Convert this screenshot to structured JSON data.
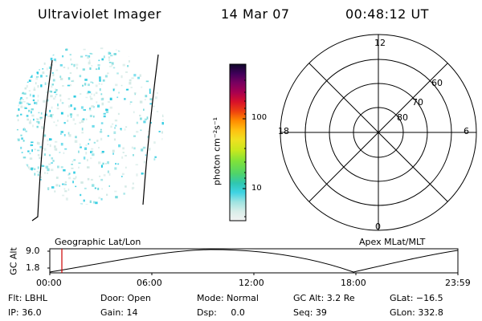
{
  "header": {
    "instrument": "Ultraviolet Imager",
    "date": "14 Mar 07",
    "time": "00:48:12 UT"
  },
  "colorbar": {
    "unit_label": "photon cm⁻²s⁻¹",
    "ticks": [
      "100",
      "10"
    ]
  },
  "polar": {
    "clock_labels": [
      "12",
      "18",
      "6",
      "0"
    ],
    "lat_labels": [
      "60",
      "70",
      "80"
    ]
  },
  "altitude_plot": {
    "left_label": "Geographic Lat/Lon",
    "right_label": "Apex MLat/MLT",
    "ylabel": "GC Alt",
    "yticks": [
      "9.0",
      "1.8"
    ],
    "xticks": [
      "00:00",
      "06:00",
      "12:00",
      "18:00",
      "23:59"
    ]
  },
  "status": {
    "row1": [
      "Flt: LBHL",
      "Door: Open",
      "Mode: Normal",
      "GC Alt: 3.2 Re",
      "GLat: −16.5"
    ],
    "row2": [
      "IP: 36.0",
      "Gain: 14",
      "Dsp:     0.0",
      "Seq: 39",
      "GLon: 332.8"
    ]
  },
  "colors": {
    "emission_low": "#d0e8e4",
    "emission_mid": "#6fd8dc",
    "emission_high": "#20c8e0",
    "time_marker": "#cc0000"
  }
}
